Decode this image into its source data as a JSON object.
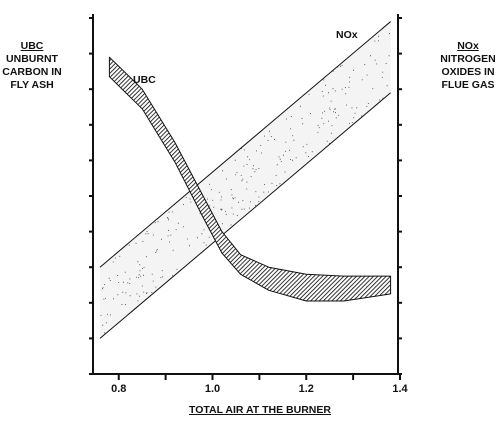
{
  "chart_data": {
    "type": "line",
    "xlabel": "TOTAL AIR AT THE BURNER",
    "xlim": [
      0.76,
      1.4
    ],
    "x_ticks": [
      {
        "value": 0.8,
        "label": "0.8"
      },
      {
        "value": 1.0,
        "label": "1.0"
      },
      {
        "value": 1.2,
        "label": "1.2"
      },
      {
        "value": 1.4,
        "label": "1.4"
      }
    ],
    "x_minor_ticks": [
      0.9,
      1.1,
      1.3
    ],
    "ylim": [
      0,
      10
    ],
    "y_tick_count": 11,
    "left_axis": {
      "title": "UBC",
      "lines": [
        "UNBURNT",
        "CARBON IN",
        "FLY ASH"
      ]
    },
    "right_axis": {
      "title": "NOx",
      "lines": [
        "NITROGEN",
        "OXIDES IN",
        "FLUE GAS"
      ]
    },
    "series": [
      {
        "name": "NOx",
        "style": "stippled-band",
        "x": [
          0.76,
          1.38
        ],
        "upper": [
          3.0,
          9.9
        ],
        "lower": [
          1.0,
          7.9
        ]
      },
      {
        "name": "UBC",
        "style": "hatched-band",
        "x": [
          0.78,
          0.85,
          0.92,
          0.98,
          1.02,
          1.06,
          1.12,
          1.2,
          1.28,
          1.38
        ],
        "upper": [
          8.9,
          8.0,
          6.5,
          5.0,
          4.0,
          3.35,
          3.0,
          2.8,
          2.75,
          2.75
        ],
        "lower": [
          8.35,
          7.45,
          5.95,
          4.4,
          3.4,
          2.8,
          2.35,
          2.05,
          2.05,
          2.25
        ]
      }
    ],
    "grid": false
  }
}
